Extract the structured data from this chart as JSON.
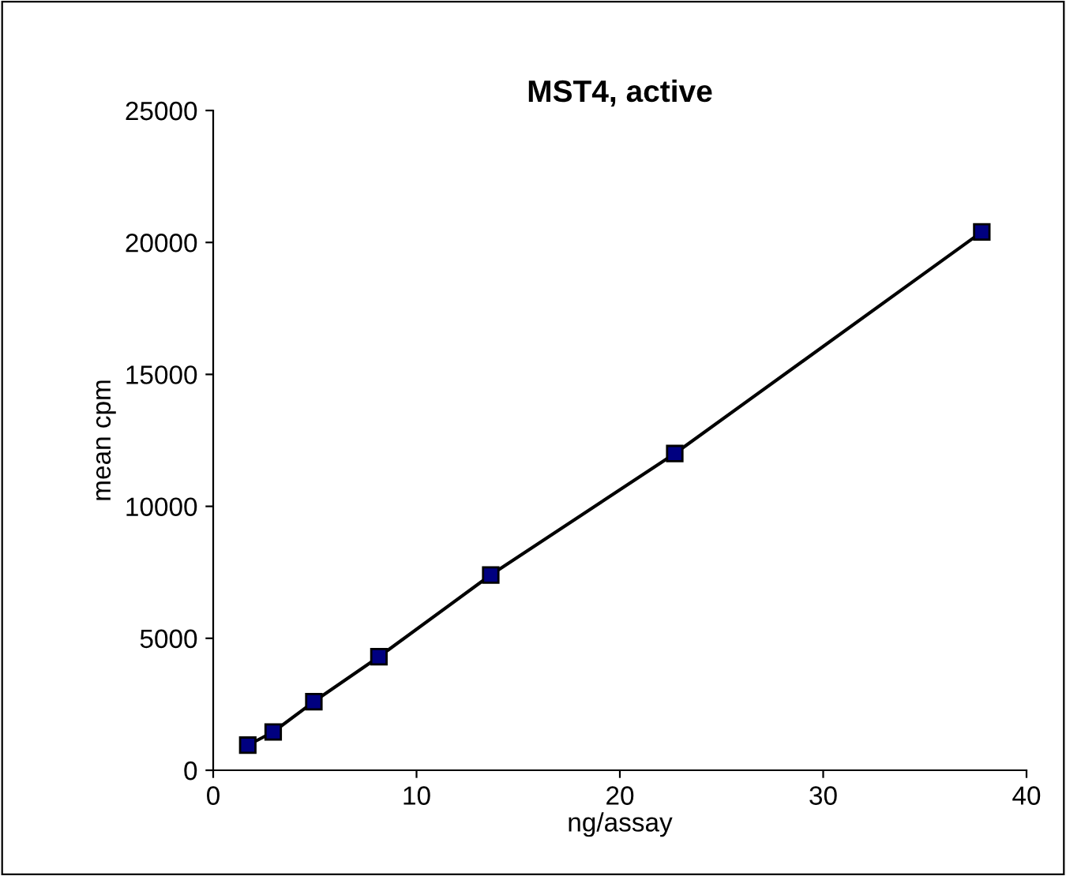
{
  "chart_data": {
    "type": "line",
    "title": "MST4, active",
    "xlabel": "ng/assay",
    "ylabel": "mean cpm",
    "x": [
      1.7,
      2.95,
      4.95,
      8.15,
      13.65,
      22.7,
      37.8
    ],
    "series": [
      {
        "color": "#000000",
        "values": [
          950,
          1450,
          2600,
          4300,
          7400,
          12000,
          20400
        ]
      }
    ],
    "marker": "square",
    "line_style": "solid",
    "xlim": [
      0,
      40
    ],
    "xticks": [
      0,
      10,
      20,
      30,
      40
    ],
    "ylim": [
      0,
      25000
    ],
    "yticks": [
      0,
      5000,
      10000,
      15000,
      20000,
      25000
    ],
    "grid": false,
    "legend": false
  }
}
